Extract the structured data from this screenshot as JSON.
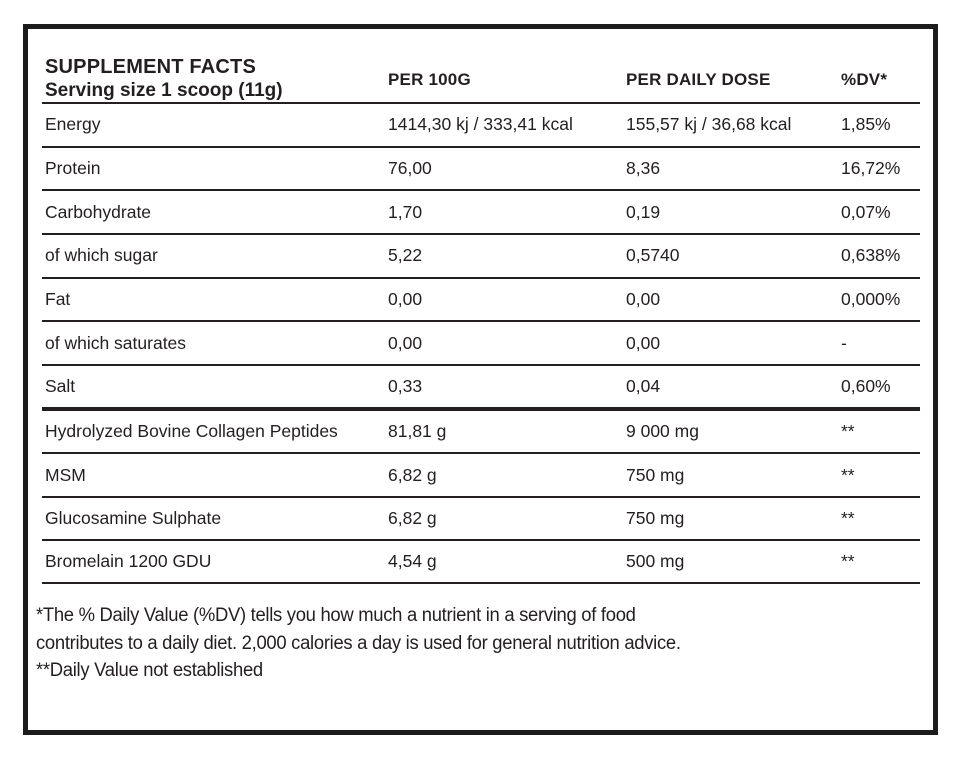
{
  "header": {
    "title": "SUPPLEMENT FACTS",
    "serving": "Serving size 1 scoop (11g)",
    "col_per_100g": "PER 100G",
    "col_per_daily_dose": "PER DAILY DOSE",
    "col_dv": "%DV*"
  },
  "nutrients": [
    {
      "name": "Energy",
      "per100g": "1414,30 kj / 333,41 kcal",
      "daily": "155,57 kj / 36,68 kcal",
      "dv": "1,85%"
    },
    {
      "name": "Protein",
      "per100g": "76,00",
      "daily": "8,36",
      "dv": "16,72%"
    },
    {
      "name": "Carbohydrate",
      "per100g": "1,70",
      "daily": "0,19",
      "dv": "0,07%"
    },
    {
      "name": "of which sugar",
      "per100g": "5,22",
      "daily": "0,5740",
      "dv": "0,638%"
    },
    {
      "name": "Fat",
      "per100g": "0,00",
      "daily": "0,00",
      "dv": "0,000%"
    },
    {
      "name": "of which saturates",
      "per100g": "0,00",
      "daily": "0,00",
      "dv": "-"
    },
    {
      "name": "Salt",
      "per100g": "0,33",
      "daily": "0,04",
      "dv": "0,60%"
    }
  ],
  "ingredients": [
    {
      "name": "Hydrolyzed Bovine Collagen Peptides",
      "per100g": "81,81 g",
      "daily": "9 000 mg",
      "dv": "**"
    },
    {
      "name": "MSM",
      "per100g": "6,82 g",
      "daily": "750 mg",
      "dv": "**"
    },
    {
      "name": "Glucosamine Sulphate",
      "per100g": "6,82 g",
      "daily": "750 mg",
      "dv": "**"
    },
    {
      "name": "Bromelain 1200 GDU",
      "per100g": "4,54 g",
      "daily": "500 mg",
      "dv": "**"
    }
  ],
  "footnotes": [
    "*The % Daily Value (%DV) tells you how much a nutrient in a serving of food",
    "contributes to a daily diet. 2,000 calories a day is used for general nutrition advice.",
    "**Daily Value not established"
  ],
  "colors": {
    "text": "#231f20",
    "border": "#1c1c1c",
    "background": "#ffffff"
  }
}
